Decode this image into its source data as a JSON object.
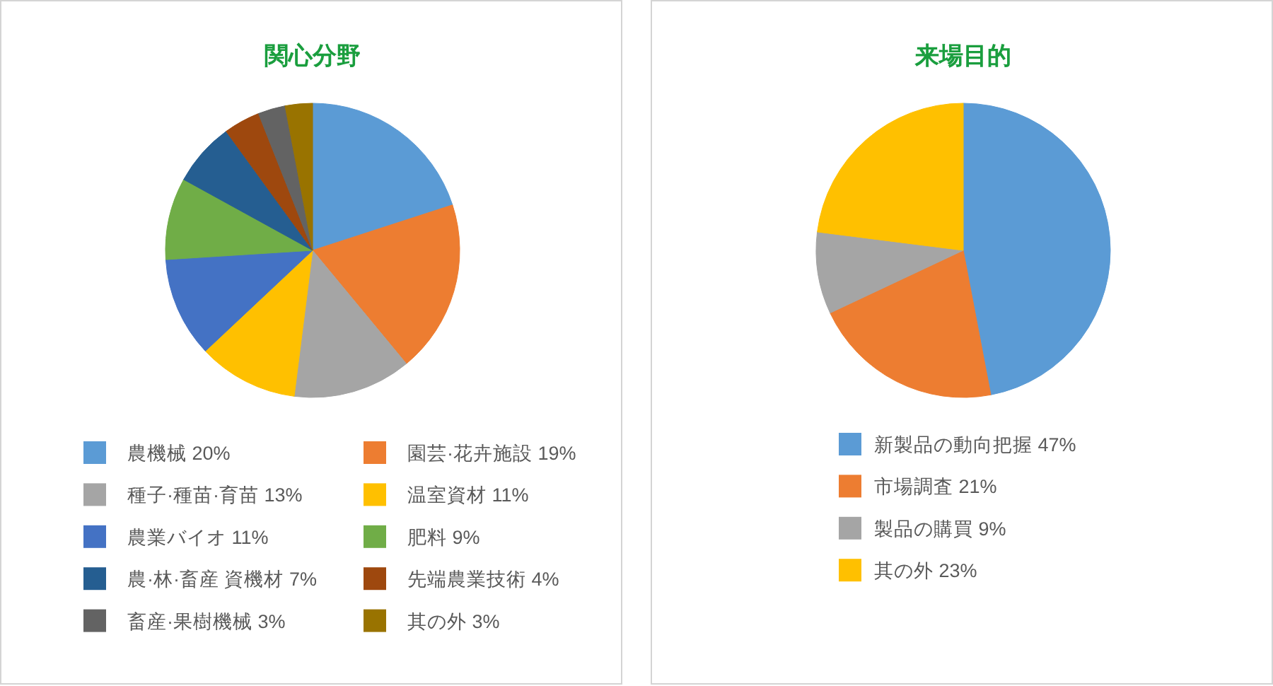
{
  "chart_data": [
    {
      "type": "pie",
      "title": "関心分野",
      "categories": [
        "農機械",
        "園芸·花卉施設",
        "種子·種苗·育苗",
        "温室資材",
        "農業バイオ",
        "肥料",
        "農·林·畜産 資機材",
        "先端農業技術",
        "畜産·果樹機械",
        "其の外"
      ],
      "values": [
        20,
        19,
        13,
        11,
        11,
        9,
        7,
        4,
        3,
        3
      ],
      "value_labels": [
        "20%",
        "19%",
        "13%",
        "11%",
        "11%",
        "9%",
        "7%",
        "4%",
        "3%",
        "3%"
      ],
      "colors": [
        "#5b9bd5",
        "#ed7d31",
        "#a5a5a5",
        "#ffc000",
        "#4472c4",
        "#70ad47",
        "#255e91",
        "#9e480e",
        "#636363",
        "#997300"
      ],
      "legend": "bottom"
    },
    {
      "type": "pie",
      "title": "来場目的",
      "categories": [
        "新製品の動向把握",
        "市場調査",
        "製品の購買",
        "其の外"
      ],
      "values": [
        47,
        21,
        9,
        23
      ],
      "value_labels": [
        "47%",
        "21%",
        "9%",
        "23%"
      ],
      "colors": [
        "#5b9bd5",
        "#ed7d31",
        "#a5a5a5",
        "#ffc000"
      ],
      "legend": "bottom"
    }
  ]
}
